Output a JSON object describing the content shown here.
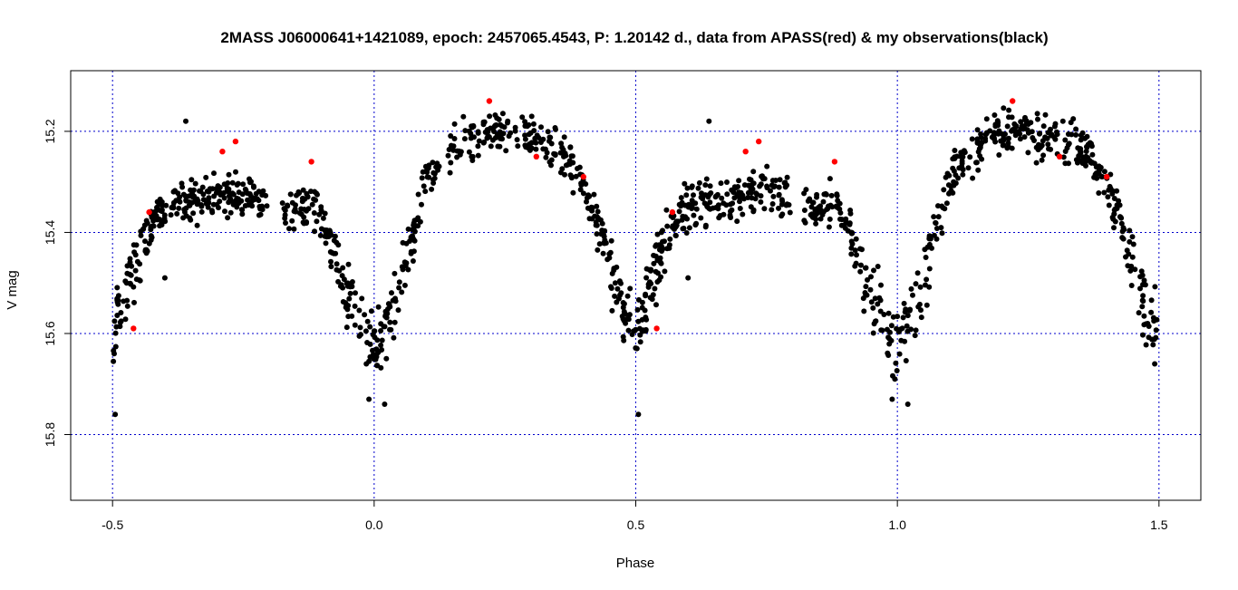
{
  "chart_data": {
    "type": "scatter",
    "title": "2MASS J06000641+1421089, epoch: 2457065.4543, P: 1.20142 d., data from APASS(red) & my observations(black)",
    "xlabel": "Phase",
    "ylabel": "V mag",
    "xlim": [
      -0.58,
      1.58
    ],
    "ylim": [
      15.93,
      15.08
    ],
    "y_inverted": true,
    "x_ticks": [
      -0.5,
      0.0,
      0.5,
      1.0,
      1.5
    ],
    "x_tick_labels": [
      "-0.5",
      "0.0",
      "0.5",
      "1.0",
      "1.5"
    ],
    "y_ticks": [
      15.2,
      15.4,
      15.6,
      15.8
    ],
    "y_tick_labels": [
      "15.2",
      "15.4",
      "15.6",
      "15.8"
    ],
    "grid": true,
    "grid_color": "#0000cc",
    "series": [
      {
        "color": "#000000",
        "description_source": "my observations(black)",
        "light_curve": {
          "phase": [
            -0.5,
            -0.48,
            -0.46,
            -0.44,
            -0.42,
            -0.4,
            -0.38,
            -0.36,
            -0.34,
            -0.32,
            -0.3,
            -0.28,
            -0.26,
            -0.24,
            -0.22,
            -0.18,
            -0.16,
            -0.14,
            -0.12,
            -0.1,
            -0.08,
            -0.06,
            -0.04,
            -0.02,
            0.0,
            0.02,
            0.04,
            0.06,
            0.08,
            0.1,
            0.12,
            0.14,
            0.16,
            0.18,
            0.2,
            0.22,
            0.24,
            0.26,
            0.28,
            0.3,
            0.32,
            0.34,
            0.36,
            0.38,
            0.4,
            0.42,
            0.44,
            0.46,
            0.48,
            0.5
          ],
          "vmag": [
            15.6,
            15.54,
            15.47,
            15.41,
            15.37,
            15.35,
            15.34,
            15.34,
            15.34,
            15.33,
            15.33,
            15.32,
            15.32,
            15.32,
            15.33,
            15.35,
            15.35,
            15.35,
            15.35,
            15.37,
            15.43,
            15.5,
            15.55,
            15.6,
            15.63,
            15.59,
            15.53,
            15.46,
            15.38,
            15.3,
            15.26,
            15.24,
            15.22,
            15.21,
            15.21,
            15.2,
            15.2,
            15.21,
            15.21,
            15.21,
            15.22,
            15.23,
            15.24,
            15.27,
            15.31,
            15.36,
            15.42,
            15.5,
            15.56,
            15.6
          ]
        },
        "extra_points": [
          {
            "phase": -0.495,
            "vmag": 15.76
          },
          {
            "phase": -0.01,
            "vmag": 15.73
          },
          {
            "phase": 0.02,
            "vmag": 15.74
          },
          {
            "phase": -0.06,
            "vmag": 15.47
          },
          {
            "phase": -0.36,
            "vmag": 15.18
          },
          {
            "phase": -0.4,
            "vmag": 15.49
          }
        ]
      },
      {
        "color": "#ff0000",
        "description_source": "APASS(red)",
        "points": [
          {
            "phase": -0.46,
            "vmag": 15.59
          },
          {
            "phase": -0.43,
            "vmag": 15.36
          },
          {
            "phase": -0.29,
            "vmag": 15.24
          },
          {
            "phase": -0.265,
            "vmag": 15.22
          },
          {
            "phase": -0.12,
            "vmag": 15.26
          },
          {
            "phase": 0.22,
            "vmag": 15.14
          },
          {
            "phase": 0.31,
            "vmag": 15.25
          },
          {
            "phase": 0.4,
            "vmag": 15.29
          }
        ],
        "repeat_with_phase_shift": 1.0
      }
    ],
    "phase_range_shown": [
      -0.5,
      1.5
    ]
  }
}
